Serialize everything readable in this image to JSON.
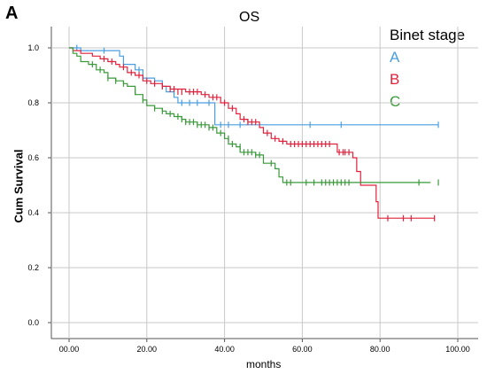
{
  "panel_letter": "A",
  "chart_data": {
    "type": "line",
    "title": "OS",
    "xlabel": "months",
    "ylabel": "Cum Survival",
    "xlim": [
      0,
      100
    ],
    "ylim": [
      0,
      1.0
    ],
    "xticks": [
      "00.00",
      "20.00",
      "40.00",
      "60.00",
      "80.00",
      "100.00"
    ],
    "yticks": [
      "0.0",
      "0.2",
      "0.4",
      "0.6",
      "0.8",
      "1.0"
    ],
    "grid": true,
    "legend_title": "Binet stage",
    "legend_position": "top-right",
    "series": [
      {
        "name": "A",
        "color": "#4a9ee0",
        "steps": [
          [
            0,
            1.0
          ],
          [
            3,
            0.99
          ],
          [
            13,
            0.97
          ],
          [
            14,
            0.94
          ],
          [
            17,
            0.92
          ],
          [
            19,
            0.89
          ],
          [
            22,
            0.88
          ],
          [
            24,
            0.86
          ],
          [
            25,
            0.84
          ],
          [
            27,
            0.82
          ],
          [
            28,
            0.8
          ],
          [
            37,
            0.8
          ],
          [
            37.5,
            0.72
          ],
          [
            95,
            0.72
          ]
        ],
        "censored": [
          [
            2,
            1.0
          ],
          [
            9,
            0.99
          ],
          [
            18,
            0.92
          ],
          [
            24,
            0.86
          ],
          [
            27,
            0.84
          ],
          [
            29,
            0.8
          ],
          [
            31,
            0.8
          ],
          [
            33,
            0.8
          ],
          [
            36,
            0.8
          ],
          [
            39,
            0.72
          ],
          [
            41,
            0.72
          ],
          [
            44,
            0.72
          ],
          [
            62,
            0.72
          ],
          [
            70,
            0.72
          ],
          [
            95,
            0.72
          ]
        ]
      },
      {
        "name": "B",
        "color": "#e0223c",
        "steps": [
          [
            0,
            1.0
          ],
          [
            1,
            0.99
          ],
          [
            3,
            0.98
          ],
          [
            6,
            0.97
          ],
          [
            8,
            0.96
          ],
          [
            10,
            0.95
          ],
          [
            12,
            0.94
          ],
          [
            13,
            0.93
          ],
          [
            15,
            0.91
          ],
          [
            17,
            0.9
          ],
          [
            19,
            0.88
          ],
          [
            21,
            0.87
          ],
          [
            24,
            0.86
          ],
          [
            26,
            0.85
          ],
          [
            30,
            0.84
          ],
          [
            34,
            0.83
          ],
          [
            36,
            0.82
          ],
          [
            39,
            0.8
          ],
          [
            41,
            0.78
          ],
          [
            43,
            0.76
          ],
          [
            44,
            0.74
          ],
          [
            46,
            0.73
          ],
          [
            49,
            0.71
          ],
          [
            50,
            0.69
          ],
          [
            52,
            0.67
          ],
          [
            54,
            0.66
          ],
          [
            56,
            0.65
          ],
          [
            68,
            0.65
          ],
          [
            69,
            0.62
          ],
          [
            73,
            0.6
          ],
          [
            74,
            0.55
          ],
          [
            75,
            0.5
          ],
          [
            79,
            0.44
          ],
          [
            79.5,
            0.38
          ],
          [
            94,
            0.38
          ]
        ],
        "censored": [
          [
            9,
            0.96
          ],
          [
            11,
            0.95
          ],
          [
            14,
            0.93
          ],
          [
            16,
            0.91
          ],
          [
            18,
            0.9
          ],
          [
            20,
            0.88
          ],
          [
            22,
            0.87
          ],
          [
            24,
            0.86
          ],
          [
            26,
            0.85
          ],
          [
            27,
            0.85
          ],
          [
            28,
            0.84
          ],
          [
            29,
            0.84
          ],
          [
            31,
            0.84
          ],
          [
            32,
            0.84
          ],
          [
            33,
            0.84
          ],
          [
            35,
            0.83
          ],
          [
            37,
            0.82
          ],
          [
            38,
            0.82
          ],
          [
            40,
            0.8
          ],
          [
            42,
            0.78
          ],
          [
            45,
            0.74
          ],
          [
            46,
            0.73
          ],
          [
            47,
            0.73
          ],
          [
            48,
            0.73
          ],
          [
            51,
            0.69
          ],
          [
            53,
            0.67
          ],
          [
            55,
            0.66
          ],
          [
            57,
            0.65
          ],
          [
            58,
            0.65
          ],
          [
            59,
            0.65
          ],
          [
            60,
            0.65
          ],
          [
            61,
            0.65
          ],
          [
            62,
            0.65
          ],
          [
            63,
            0.65
          ],
          [
            64,
            0.65
          ],
          [
            65,
            0.65
          ],
          [
            66,
            0.65
          ],
          [
            67,
            0.65
          ],
          [
            69.5,
            0.62
          ],
          [
            70.5,
            0.62
          ],
          [
            71,
            0.62
          ],
          [
            72,
            0.62
          ],
          [
            82,
            0.38
          ],
          [
            86,
            0.38
          ],
          [
            88,
            0.38
          ],
          [
            94,
            0.38
          ]
        ]
      },
      {
        "name": "C",
        "color": "#3a9a3a",
        "steps": [
          [
            0,
            1.0
          ],
          [
            1,
            0.98
          ],
          [
            2,
            0.97
          ],
          [
            3,
            0.95
          ],
          [
            5,
            0.94
          ],
          [
            7,
            0.92
          ],
          [
            9,
            0.91
          ],
          [
            10,
            0.89
          ],
          [
            12,
            0.88
          ],
          [
            14,
            0.87
          ],
          [
            15,
            0.86
          ],
          [
            17,
            0.83
          ],
          [
            19,
            0.81
          ],
          [
            20,
            0.79
          ],
          [
            22,
            0.78
          ],
          [
            24,
            0.77
          ],
          [
            25,
            0.76
          ],
          [
            27,
            0.75
          ],
          [
            29,
            0.74
          ],
          [
            30,
            0.73
          ],
          [
            33,
            0.72
          ],
          [
            36,
            0.71
          ],
          [
            38,
            0.69
          ],
          [
            40,
            0.67
          ],
          [
            41,
            0.65
          ],
          [
            43,
            0.64
          ],
          [
            44,
            0.62
          ],
          [
            48,
            0.61
          ],
          [
            50,
            0.58
          ],
          [
            53,
            0.56
          ],
          [
            54,
            0.53
          ],
          [
            55,
            0.51
          ],
          [
            93,
            0.51
          ]
        ],
        "censored": [
          [
            6,
            0.94
          ],
          [
            8,
            0.92
          ],
          [
            10,
            0.89
          ],
          [
            12,
            0.88
          ],
          [
            14,
            0.87
          ],
          [
            17,
            0.84
          ],
          [
            19,
            0.81
          ],
          [
            22,
            0.78
          ],
          [
            24,
            0.77
          ],
          [
            26,
            0.76
          ],
          [
            28,
            0.75
          ],
          [
            29,
            0.74
          ],
          [
            30,
            0.73
          ],
          [
            31,
            0.73
          ],
          [
            32,
            0.73
          ],
          [
            33,
            0.72
          ],
          [
            34,
            0.72
          ],
          [
            35,
            0.72
          ],
          [
            36,
            0.71
          ],
          [
            37,
            0.71
          ],
          [
            39,
            0.69
          ],
          [
            41,
            0.67
          ],
          [
            42,
            0.65
          ],
          [
            44,
            0.64
          ],
          [
            45,
            0.62
          ],
          [
            46,
            0.62
          ],
          [
            47,
            0.62
          ],
          [
            48,
            0.61
          ],
          [
            49,
            0.61
          ],
          [
            52,
            0.58
          ],
          [
            56,
            0.51
          ],
          [
            57,
            0.51
          ],
          [
            61,
            0.51
          ],
          [
            63,
            0.51
          ],
          [
            65,
            0.51
          ],
          [
            66,
            0.51
          ],
          [
            67,
            0.51
          ],
          [
            68,
            0.51
          ],
          [
            69,
            0.51
          ],
          [
            70,
            0.51
          ],
          [
            71,
            0.51
          ],
          [
            72,
            0.51
          ],
          [
            90,
            0.51
          ],
          [
            95,
            0.51
          ]
        ]
      }
    ]
  }
}
